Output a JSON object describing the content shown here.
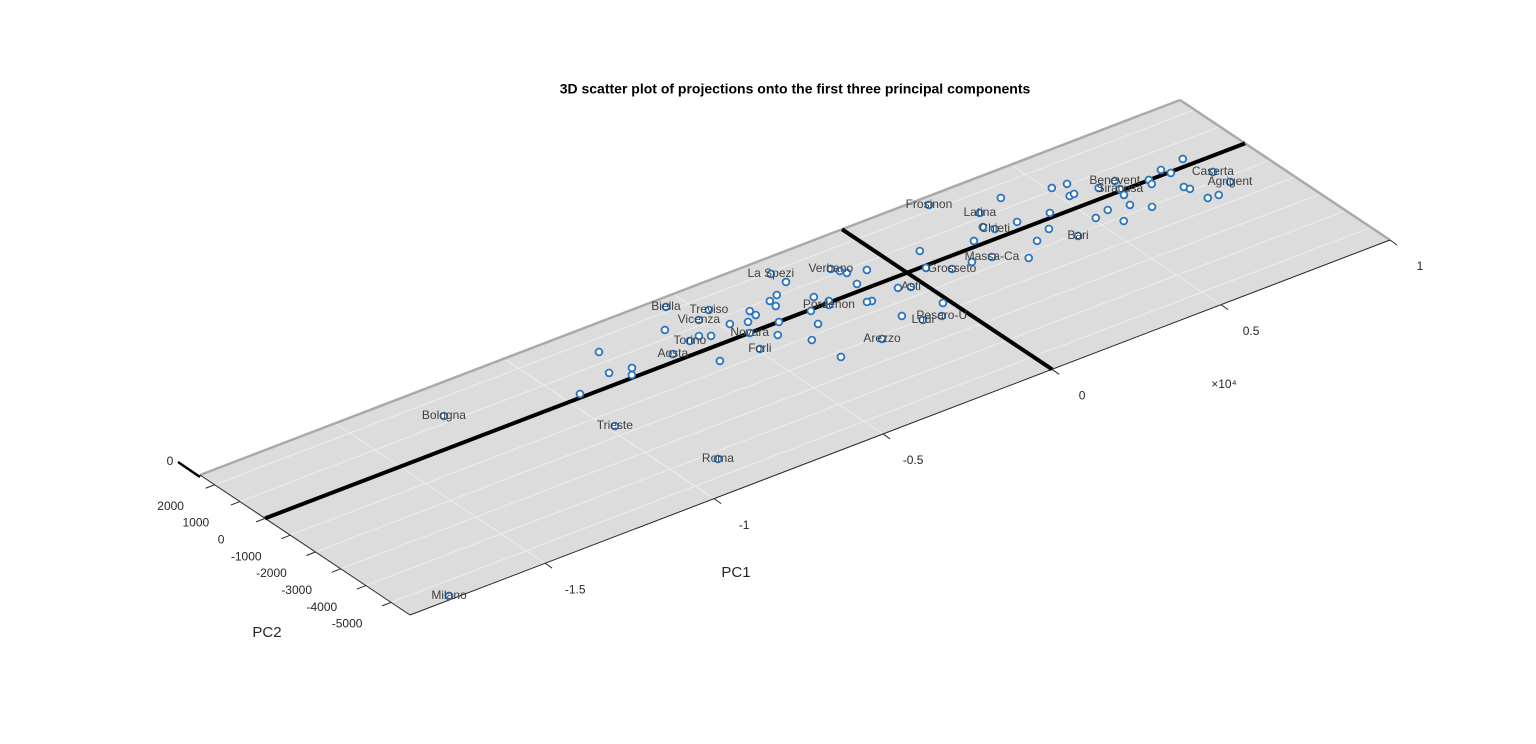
{
  "chart_data": {
    "type": "scatter",
    "title": "3D scatter plot of projections onto the first three principal components",
    "xlabel": "PC1",
    "ylabel": "PC2",
    "x_exponent": "×10⁴",
    "xlim": [
      -1.9,
      1.0
    ],
    "ylim": [
      -5750,
      2580
    ],
    "xticks": [
      -1.5,
      -1,
      -0.5,
      0,
      0.5,
      1
    ],
    "yticks": [
      2000,
      1000,
      0,
      -1000,
      -2000,
      -3000,
      -4000,
      -5000
    ],
    "zticks": [
      0
    ],
    "grid": true,
    "color": "#2a74c4",
    "labels": [
      "Frosinon",
      "Latina",
      "Chieti",
      "Massa-Ca",
      "Grosseto",
      "Bari",
      "Benevent",
      "Siracusa",
      "Caserta",
      "Agrigent",
      "Verbano",
      "La Spezi",
      "Biella",
      "Treviso",
      "Vicenza",
      "Novara",
      "Torino",
      "Aosta",
      "Forli",
      "Pordenon",
      "Asti",
      "Pesaro-U",
      "Lodi",
      "Arezzo",
      "Bologna",
      "Trieste",
      "Roma",
      "Milano",
      null,
      null,
      null,
      null,
      null,
      null,
      null,
      null,
      null,
      null,
      null,
      null,
      null,
      null,
      null,
      null,
      null,
      null,
      null,
      null,
      null,
      null,
      null,
      null,
      null,
      null,
      null,
      null,
      null,
      null,
      null,
      null,
      null,
      null,
      null,
      null,
      null,
      null,
      null,
      null,
      null,
      null,
      null,
      null,
      null,
      null,
      null,
      null,
      null,
      null,
      null,
      null,
      null,
      null,
      null,
      null,
      null,
      null,
      null,
      null,
      null
    ],
    "x": [
      0.232,
      0.305,
      0.288,
      0.204,
      0.095,
      0.425,
      0.649,
      0.636,
      0.859,
      0.863,
      -0.133,
      -0.26,
      -0.55,
      -0.478,
      -0.525,
      -0.466,
      -0.601,
      -0.67,
      -0.492,
      -0.238,
      -0.033,
      -0.057,
      -0.104,
      -0.234,
      -1.275,
      -0.982,
      -0.881,
      -1.773,
      0.839,
      0.767,
      0.716,
      0.777,
      0.71,
      0.762,
      0.768,
      0.776,
      0.805,
      0.646,
      0.627,
      0.61,
      0.553,
      0.554,
      0.509,
      0.599,
      0.522,
      0.536,
      0.551,
      0.511,
      0.437,
      0.39,
      0.334,
      0.35,
      0.27,
      0.387,
      0.215,
      0.271,
      0.152,
      0.085,
      -0.018,
      -0.132,
      -0.06,
      0.049,
      -0.068,
      -0.126,
      -0.114,
      -0.122,
      -0.146,
      -0.158,
      -0.244,
      -0.289,
      -0.312,
      -0.369,
      -0.362,
      -0.227,
      -0.254,
      -0.308,
      -0.338,
      -0.341,
      -0.38,
      -0.419,
      -0.404,
      -0.404,
      -0.438,
      -0.478,
      -0.547,
      -0.601,
      -0.57,
      -0.617,
      -0.803,
      -0.843,
      -0.786,
      -0.806,
      -0.957
    ],
    "y": [
      2245,
      1205,
      383,
      -632,
      -507,
      -1082,
      462,
      88,
      -615,
      -1239,
      1243,
      1921,
      2192,
      1457,
      1223,
      -5,
      560,
      314,
      -755,
      -89,
      -595,
      -2139,
      -2016,
      -2141,
      1282,
      -1569,
      -4305,
      -5595,
      311,
      213,
      8,
      -45,
      -186,
      -763,
      -924,
      -1525,
      -1571,
      -1056,
      -197,
      -662,
      -1180,
      -533,
      -661,
      429,
      546,
      564,
      1043,
      1109,
      193,
      -398,
      -678,
      329,
      -1204,
      1469,
      233,
      632,
      -532,
      636,
      -1662,
      -1561,
      -444,
      -93,
      684,
      300,
      860,
      1037,
      -560,
      -526,
      430,
      -56,
      -648,
      -1167,
      -2229,
      62,
      1401,
      1041,
      915,
      639,
      -9,
      -486,
      826,
      588,
      439,
      624,
      445,
      -630,
      618,
      1337,
      1459,
      522,
      378,
      113,
      147
    ]
  }
}
